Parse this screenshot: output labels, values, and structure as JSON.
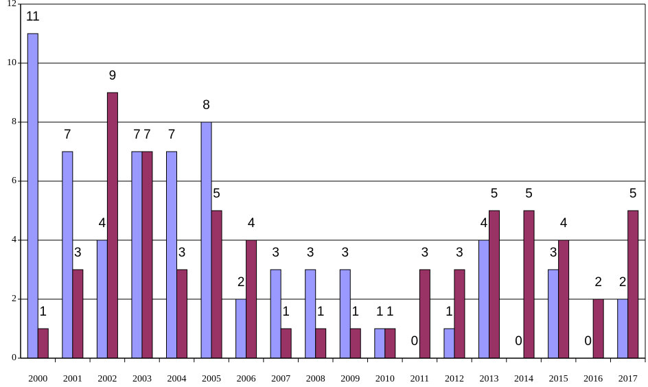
{
  "chart_data": {
    "type": "bar",
    "categories": [
      "2000",
      "2001",
      "2002",
      "2003",
      "2004",
      "2005",
      "2006",
      "2007",
      "2008",
      "2009",
      "2010",
      "2011",
      "2012",
      "2013",
      "2014",
      "2015",
      "2016",
      "2017"
    ],
    "series": [
      {
        "color": "#9999ff",
        "values": [
          11,
          7,
          4,
          7,
          7,
          8,
          2,
          3,
          3,
          3,
          1,
          0,
          1,
          4,
          0,
          3,
          0,
          2
        ]
      },
      {
        "color": "#993366",
        "values": [
          1,
          3,
          9,
          7,
          3,
          5,
          4,
          1,
          1,
          1,
          1,
          3,
          3,
          5,
          5,
          4,
          2,
          5
        ]
      }
    ],
    "ylim": [
      0,
      12
    ],
    "yticks": [
      0,
      2,
      4,
      6,
      8,
      10,
      12
    ],
    "grid": true
  }
}
